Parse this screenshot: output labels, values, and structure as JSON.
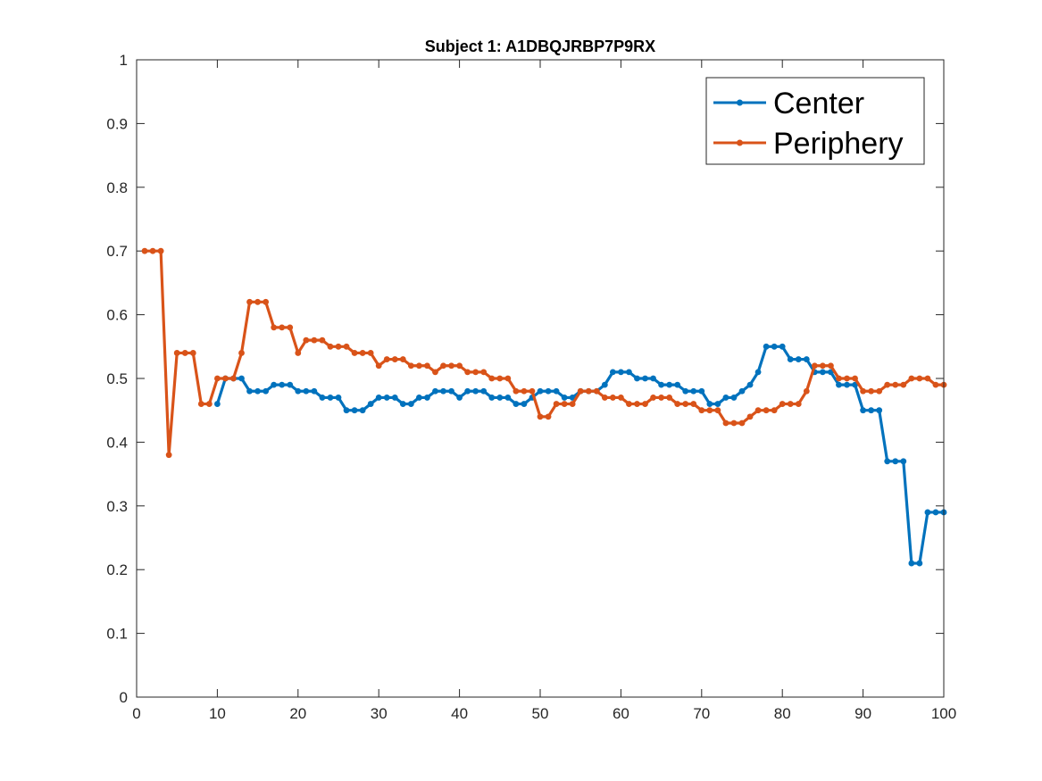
{
  "chart_data": {
    "type": "line",
    "title": "Subject 1: A1DBQJRBP7P9RX",
    "xlabel": "",
    "ylabel": "",
    "xlim": [
      0,
      100
    ],
    "ylim": [
      0,
      1
    ],
    "grid": false,
    "legend_position": "top-right",
    "x_ticks": [
      0,
      10,
      20,
      30,
      40,
      50,
      60,
      70,
      80,
      90,
      100
    ],
    "x_tick_labels": [
      "0",
      "10",
      "20",
      "30",
      "40",
      "50",
      "60",
      "70",
      "80",
      "90",
      "100"
    ],
    "y_ticks": [
      0,
      0.1,
      0.2,
      0.3,
      0.4,
      0.5,
      0.6,
      0.7,
      0.8,
      0.9,
      1
    ],
    "y_tick_labels": [
      "0",
      "0.1",
      "0.2",
      "0.3",
      "0.4",
      "0.5",
      "0.6",
      "0.7",
      "0.8",
      "0.9",
      "1"
    ],
    "series": [
      {
        "name": "Center",
        "color": "#0072BD",
        "x": [
          10,
          11,
          12,
          13,
          14,
          15,
          16,
          17,
          18,
          19,
          20,
          21,
          22,
          23,
          24,
          25,
          26,
          27,
          28,
          29,
          30,
          31,
          32,
          33,
          34,
          35,
          36,
          37,
          38,
          39,
          40,
          41,
          42,
          43,
          44,
          45,
          46,
          47,
          48,
          49,
          50,
          51,
          52,
          53,
          54,
          55,
          56,
          57,
          58,
          59,
          60,
          61,
          62,
          63,
          64,
          65,
          66,
          67,
          68,
          69,
          70,
          71,
          72,
          73,
          74,
          75,
          76,
          77,
          78,
          79,
          80,
          81,
          82,
          83,
          84,
          85,
          86,
          87,
          88,
          89,
          90,
          91,
          92,
          93,
          94,
          95,
          96,
          97,
          98,
          99,
          100
        ],
        "y": [
          0.46,
          0.5,
          0.5,
          0.5,
          0.48,
          0.48,
          0.48,
          0.49,
          0.49,
          0.49,
          0.48,
          0.48,
          0.48,
          0.47,
          0.47,
          0.47,
          0.45,
          0.45,
          0.45,
          0.46,
          0.47,
          0.47,
          0.47,
          0.46,
          0.46,
          0.47,
          0.47,
          0.48,
          0.48,
          0.48,
          0.47,
          0.48,
          0.48,
          0.48,
          0.47,
          0.47,
          0.47,
          0.46,
          0.46,
          0.47,
          0.48,
          0.48,
          0.48,
          0.47,
          0.47,
          0.48,
          0.48,
          0.48,
          0.49,
          0.51,
          0.51,
          0.51,
          0.5,
          0.5,
          0.5,
          0.49,
          0.49,
          0.49,
          0.48,
          0.48,
          0.48,
          0.46,
          0.46,
          0.47,
          0.47,
          0.48,
          0.49,
          0.51,
          0.55,
          0.55,
          0.55,
          0.53,
          0.53,
          0.53,
          0.51,
          0.51,
          0.51,
          0.49,
          0.49,
          0.49,
          0.45,
          0.45,
          0.45,
          0.37,
          0.37,
          0.37,
          0.21,
          0.21,
          0.29,
          0.29,
          0.29
        ]
      },
      {
        "name": "Periphery",
        "color": "#D95319",
        "x": [
          1,
          2,
          3,
          4,
          5,
          6,
          7,
          8,
          9,
          10,
          11,
          12,
          13,
          14,
          15,
          16,
          17,
          18,
          19,
          20,
          21,
          22,
          23,
          24,
          25,
          26,
          27,
          28,
          29,
          30,
          31,
          32,
          33,
          34,
          35,
          36,
          37,
          38,
          39,
          40,
          41,
          42,
          43,
          44,
          45,
          46,
          47,
          48,
          49,
          50,
          51,
          52,
          53,
          54,
          55,
          56,
          57,
          58,
          59,
          60,
          61,
          62,
          63,
          64,
          65,
          66,
          67,
          68,
          69,
          70,
          71,
          72,
          73,
          74,
          75,
          76,
          77,
          78,
          79,
          80,
          81,
          82,
          83,
          84,
          85,
          86,
          87,
          88,
          89,
          90,
          91,
          92,
          93,
          94,
          95,
          96,
          97,
          98,
          99,
          100
        ],
        "y": [
          0.7,
          0.7,
          0.7,
          0.38,
          0.54,
          0.54,
          0.54,
          0.46,
          0.46,
          0.5,
          0.5,
          0.5,
          0.54,
          0.62,
          0.62,
          0.62,
          0.58,
          0.58,
          0.58,
          0.54,
          0.56,
          0.56,
          0.56,
          0.55,
          0.55,
          0.55,
          0.54,
          0.54,
          0.54,
          0.52,
          0.53,
          0.53,
          0.53,
          0.52,
          0.52,
          0.52,
          0.51,
          0.52,
          0.52,
          0.52,
          0.51,
          0.51,
          0.51,
          0.5,
          0.5,
          0.5,
          0.48,
          0.48,
          0.48,
          0.44,
          0.44,
          0.46,
          0.46,
          0.46,
          0.48,
          0.48,
          0.48,
          0.47,
          0.47,
          0.47,
          0.46,
          0.46,
          0.46,
          0.47,
          0.47,
          0.47,
          0.46,
          0.46,
          0.46,
          0.45,
          0.45,
          0.45,
          0.43,
          0.43,
          0.43,
          0.44,
          0.45,
          0.45,
          0.45,
          0.46,
          0.46,
          0.46,
          0.48,
          0.52,
          0.52,
          0.52,
          0.5,
          0.5,
          0.5,
          0.48,
          0.48,
          0.48,
          0.49,
          0.49,
          0.49,
          0.5,
          0.5,
          0.5,
          0.49,
          0.49
        ]
      }
    ]
  }
}
